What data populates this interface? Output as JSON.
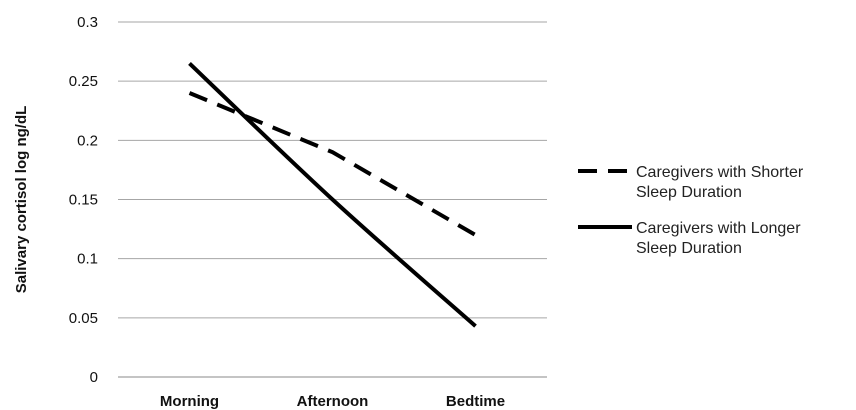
{
  "chart_data": {
    "type": "line",
    "title": "",
    "xlabel": "",
    "ylabel": "Salivary cortisol log ng/dL",
    "categories": [
      "Morning",
      "Afternoon",
      "Bedtime"
    ],
    "ylim": [
      0,
      0.3
    ],
    "yticks": [
      "0",
      "0.05",
      "0.1",
      "0.15",
      "0.2",
      "0.25",
      "0.3"
    ],
    "grid": "horizontal",
    "legend_position": "right",
    "series": [
      {
        "name_lines": [
          "Caregivers with Shorter",
          "Sleep Duration"
        ],
        "style": "dashed",
        "color": "#000000",
        "values": [
          0.24,
          0.19,
          0.12
        ]
      },
      {
        "name_lines": [
          "Caregivers with Longer",
          "Sleep Duration"
        ],
        "style": "solid",
        "color": "#000000",
        "values": [
          0.265,
          0.15,
          0.043
        ]
      }
    ]
  }
}
